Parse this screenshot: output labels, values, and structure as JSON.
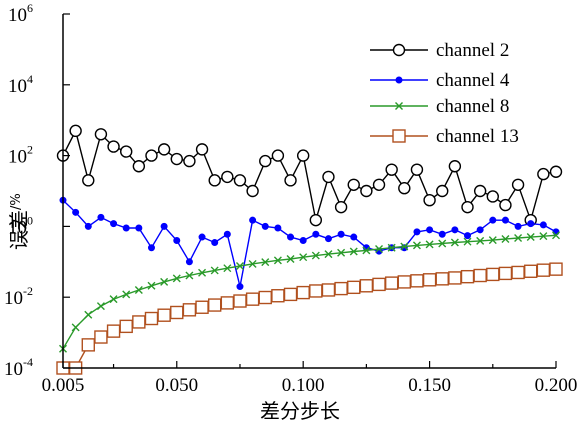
{
  "chart_data": {
    "type": "line",
    "title": "",
    "xlabel": "差分步长",
    "ylabel": "误差/%",
    "ylabel_main": "误差",
    "ylabel_unit": "/%",
    "x_scale": "linear",
    "y_scale": "log",
    "xlim": [
      0.005,
      0.2
    ],
    "ylim": [
      0.0001,
      1000000
    ],
    "x_ticks": [
      0.005,
      0.05,
      0.1,
      0.15,
      0.2
    ],
    "x_tick_labels": [
      "0.005",
      "0.050",
      "0.100",
      "0.150",
      "0.200"
    ],
    "y_ticks": [
      {
        "value": 0.0001,
        "base": "10",
        "exp": "-4"
      },
      {
        "value": 0.01,
        "base": "10",
        "exp": "-2"
      },
      {
        "value": 1,
        "base": "10",
        "exp": "0"
      },
      {
        "value": 100,
        "base": "10",
        "exp": "2"
      },
      {
        "value": 10000,
        "base": "10",
        "exp": "4"
      },
      {
        "value": 1000000,
        "base": "10",
        "exp": "6"
      }
    ],
    "grid": false,
    "legend_position": "top-right",
    "x": [
      0.005,
      0.01,
      0.015,
      0.02,
      0.025,
      0.03,
      0.035,
      0.04,
      0.045,
      0.05,
      0.055,
      0.06,
      0.065,
      0.07,
      0.075,
      0.08,
      0.085,
      0.09,
      0.095,
      0.1,
      0.105,
      0.11,
      0.115,
      0.12,
      0.125,
      0.13,
      0.135,
      0.14,
      0.145,
      0.15,
      0.155,
      0.16,
      0.165,
      0.17,
      0.175,
      0.18,
      0.185,
      0.19,
      0.195,
      0.2
    ],
    "series": [
      {
        "name": "channel 2",
        "color": "#000000",
        "marker": "circle",
        "values": [
          100,
          500,
          20,
          400,
          180,
          130,
          50,
          100,
          150,
          80,
          70,
          150,
          20,
          25,
          20,
          10,
          70,
          100,
          20,
          100,
          1.5,
          25,
          3.5,
          15,
          10,
          15,
          40,
          12,
          40,
          5.5,
          10,
          50,
          3.5,
          10,
          7,
          4,
          15,
          1.5,
          30,
          35
        ]
      },
      {
        "name": "channel 4",
        "color": "#0000ff",
        "marker": "dot",
        "values": [
          5.5,
          2.5,
          1,
          1.8,
          1.2,
          0.9,
          0.9,
          0.25,
          1,
          0.4,
          0.1,
          0.5,
          0.35,
          0.6,
          0.02,
          1.5,
          1,
          0.9,
          0.5,
          0.4,
          0.6,
          0.45,
          0.6,
          0.5,
          0.25,
          0.2,
          0.25,
          0.25,
          0.7,
          0.8,
          0.6,
          0.8,
          0.55,
          0.8,
          1.5,
          1.5,
          1,
          1.2,
          1.1,
          0.7
        ]
      },
      {
        "name": "channel 8",
        "color": "#2a9a2a",
        "marker": "x",
        "values": [
          0.00035,
          0.0014,
          0.0032,
          0.0056,
          0.0088,
          0.012,
          0.016,
          0.021,
          0.027,
          0.034,
          0.041,
          0.049,
          0.057,
          0.066,
          0.076,
          0.087,
          0.098,
          0.11,
          0.12,
          0.135,
          0.15,
          0.165,
          0.18,
          0.195,
          0.21,
          0.23,
          0.25,
          0.27,
          0.29,
          0.31,
          0.33,
          0.35,
          0.37,
          0.39,
          0.41,
          0.44,
          0.47,
          0.5,
          0.53,
          0.56
        ]
      },
      {
        "name": "channel 13",
        "color": "#b0501e",
        "marker": "square",
        "values": [
          0.0001,
          0.0001,
          0.00045,
          0.00075,
          0.0011,
          0.0015,
          0.002,
          0.0025,
          0.0031,
          0.0037,
          0.0044,
          0.0052,
          0.006,
          0.0069,
          0.0078,
          0.0088,
          0.0098,
          0.011,
          0.012,
          0.0135,
          0.015,
          0.016,
          0.0175,
          0.019,
          0.021,
          0.023,
          0.025,
          0.027,
          0.029,
          0.031,
          0.033,
          0.035,
          0.038,
          0.041,
          0.044,
          0.047,
          0.05,
          0.054,
          0.058,
          0.062
        ]
      }
    ]
  }
}
